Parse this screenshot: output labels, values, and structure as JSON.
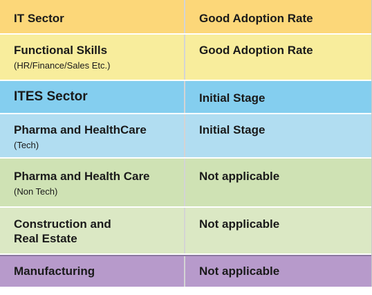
{
  "rows": [
    {
      "sector": "IT Sector",
      "sub": "",
      "status": "Good Adoption Rate",
      "color": "#fcd779"
    },
    {
      "sector": "Functional Skills",
      "sub": "(HR/Finance/Sales Etc.)",
      "status": "Good Adoption Rate",
      "color": "#f8ed9c"
    },
    {
      "sector": "ITES Sector",
      "sub": "",
      "status": "Initial Stage",
      "color": "#84ceef"
    },
    {
      "sector": "Pharma and HealthCare",
      "sub": "(Tech)",
      "status": "Initial Stage",
      "color": "#b1ddf1"
    },
    {
      "sector": "Pharma and Health Care",
      "sub": "(Non Tech)",
      "status": "Not applicable",
      "color": "#cfe2b4"
    },
    {
      "sector": "Construction and",
      "sector_line2": "Real Estate",
      "sub": "",
      "status": "Not applicable",
      "color": "#dbe8c4"
    },
    {
      "sector": "Manufacturing",
      "sub": "",
      "status": "Not applicable",
      "color": "#b79acb"
    }
  ]
}
